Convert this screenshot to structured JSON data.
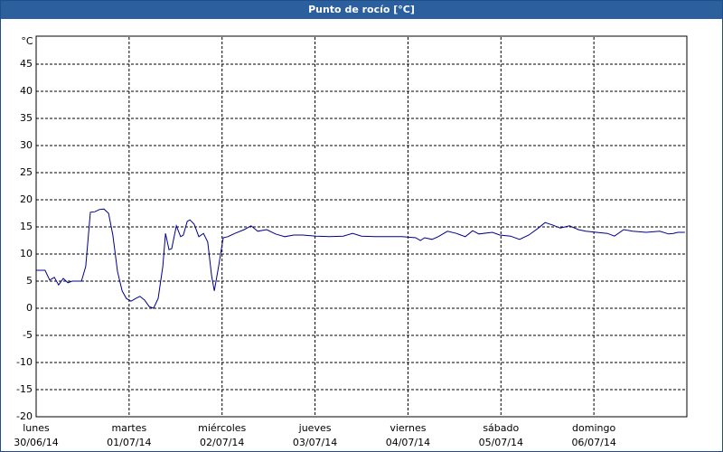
{
  "chart_data": {
    "type": "line",
    "title": "Punto de rocío [°C]",
    "y_unit": "°C",
    "x": [
      0,
      2.3,
      3.5,
      4.7,
      5.8,
      7,
      8.2,
      9.3,
      11.7,
      12.8,
      14,
      15.2,
      16.3,
      17.5,
      18.7,
      19.8,
      21,
      22.2,
      23.3,
      24.5,
      25.7,
      26.8,
      28,
      29.2,
      30.3,
      31.5,
      32.7,
      33.4,
      34.3,
      35,
      36.2,
      37.3,
      38,
      39,
      39.7,
      40.8,
      42,
      43.2,
      44.3,
      45.3,
      46,
      47.1,
      48.3,
      49.5,
      51.3,
      53.7,
      55.5,
      57.2,
      59.5,
      61.8,
      64.2,
      66.5,
      68.8,
      72.3,
      75.8,
      79.3,
      81.7,
      84,
      87.5,
      91,
      94.5,
      98,
      99.2,
      100.3,
      102.2,
      103.8,
      106.2,
      108.5,
      110.8,
      112.7,
      114.3,
      117.8,
      119.7,
      122.5,
      124.8,
      127.2,
      129.5,
      131.4,
      133.5,
      135.3,
      137.7,
      140,
      141.9,
      144.7,
      147.5,
      149.3,
      151.7,
      154,
      157.5,
      161,
      163.3,
      164.5,
      165.7,
      167.5
    ],
    "series": [
      {
        "color": "#00008b",
        "values": [
          7,
          7,
          5.2,
          5.7,
          4.3,
          5.5,
          4.7,
          5,
          5,
          7.7,
          17.7,
          17.8,
          18.2,
          18.3,
          17.5,
          13.5,
          6.8,
          3.2,
          1.8,
          1.3,
          1.8,
          2.2,
          1.5,
          0.3,
          0,
          1.8,
          7.7,
          13.8,
          10.8,
          11,
          15.2,
          13.2,
          13.5,
          16,
          16.3,
          15.5,
          13.2,
          13.8,
          12.2,
          6,
          3.2,
          7.7,
          13,
          13.2,
          13.8,
          14.5,
          15.2,
          14.2,
          14.5,
          13.7,
          13.2,
          13.5,
          13.5,
          13.3,
          13.2,
          13.3,
          13.8,
          13.3,
          13.2,
          13.2,
          13.2,
          13,
          12.5,
          13,
          12.7,
          13.2,
          14.2,
          13.8,
          13.2,
          14.3,
          13.7,
          14,
          13.5,
          13.3,
          12.7,
          13.5,
          14.7,
          15.8,
          15.3,
          14.8,
          15.2,
          14.5,
          14.2,
          14,
          13.8,
          13.3,
          14.5,
          14.2,
          14,
          14.2,
          13.7,
          13.8,
          14,
          14
        ]
      }
    ],
    "xlim": [
      0,
      168
    ],
    "xticks": [
      {
        "value": 0,
        "label": "30/06/14"
      },
      {
        "value": 24,
        "label": "01/07/14"
      },
      {
        "value": 48,
        "label": "02/07/14"
      },
      {
        "value": 72,
        "label": "03/07/14"
      },
      {
        "value": 96,
        "label": "04/07/14"
      },
      {
        "value": 120,
        "label": "05/07/14"
      },
      {
        "value": 144,
        "label": "06/07/14"
      }
    ],
    "xtick_weekdays": [
      "lunes",
      "martes",
      "miércoles",
      "jueves",
      "viernes",
      "sábado",
      "domingo"
    ],
    "ylim": [
      -20,
      50
    ],
    "yticks": [
      -20,
      -15,
      -10,
      -5,
      0,
      5,
      10,
      15,
      20,
      25,
      30,
      35,
      40,
      45
    ],
    "grid": true
  }
}
